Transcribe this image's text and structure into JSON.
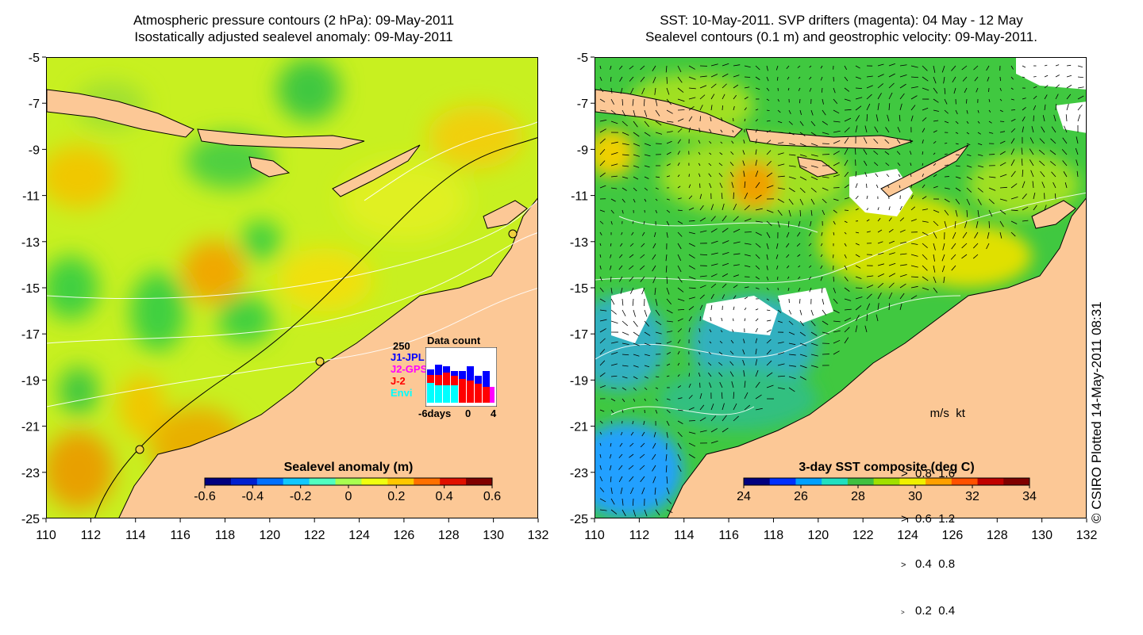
{
  "left_panel": {
    "title_line1": "Atmospheric pressure contours (2 hPa): 09-May-2011",
    "title_line2": "Isostatically adjusted sealevel anomaly: 09-May-2011",
    "colorbar": {
      "label": "Sealevel anomaly (m)",
      "ticks": [
        "-0.6",
        "-0.4",
        "-0.2",
        "0",
        "0.2",
        "0.4",
        "0.6"
      ],
      "colors": [
        "#00007f",
        "#0020d0",
        "#0070ff",
        "#10c8ff",
        "#50ffc0",
        "#a8ff50",
        "#f0ff10",
        "#ffc800",
        "#ff7000",
        "#e01000",
        "#800000"
      ]
    },
    "data_count": {
      "title": "Data count",
      "max_label": "250",
      "series": [
        {
          "name": "J1-JPL",
          "color": "#0000ff"
        },
        {
          "name": "J2-GPS",
          "color": "#ff00ff"
        },
        {
          "name": "J-2",
          "color": "#ff0000"
        },
        {
          "name": "Envi",
          "color": "#00ffff"
        }
      ],
      "xticks": [
        "-6days",
        "0",
        "4"
      ]
    }
  },
  "right_panel": {
    "title_line1": "SST: 10-May-2011. SVP drifters (magenta): 04 May - 12 May",
    "title_line2": "Sealevel contours (0.1 m) and geostrophic velocity: 09-May-2011.",
    "colorbar": {
      "label": "3-day SST composite (deg C)",
      "ticks": [
        "24",
        "26",
        "28",
        "30",
        "32",
        "34"
      ],
      "colors": [
        "#00007f",
        "#0030ff",
        "#00a0ff",
        "#20e0c0",
        "#40c040",
        "#a0e000",
        "#f0f000",
        "#ffa000",
        "#ff5000",
        "#c00000",
        "#7f0000"
      ]
    },
    "speed_legend": {
      "header_ms": "m/s",
      "header_kt": "kt",
      "rows": [
        {
          "ms": "0.8",
          "kt": "1.6"
        },
        {
          "ms": "0.6",
          "kt": "1.2"
        },
        {
          "ms": "0.4",
          "kt": "0.8"
        },
        {
          "ms": "0.2",
          "kt": "0.4"
        }
      ]
    }
  },
  "axes": {
    "lat_ticks": [
      "-5",
      "-7",
      "-9",
      "-11",
      "-13",
      "-15",
      "-17",
      "-19",
      "-21",
      "-23",
      "-25"
    ],
    "lon_ticks": [
      "110",
      "112",
      "114",
      "116",
      "118",
      "120",
      "122",
      "124",
      "126",
      "128",
      "130",
      "132"
    ]
  },
  "credit": "© CSIRO Plotted 14-May-2011 08:31",
  "colors": {
    "land": "#fcc896",
    "ocean_anomaly_base": "#c8f020",
    "ocean_sst_base": "#40c840",
    "contour": "#ffffff"
  }
}
